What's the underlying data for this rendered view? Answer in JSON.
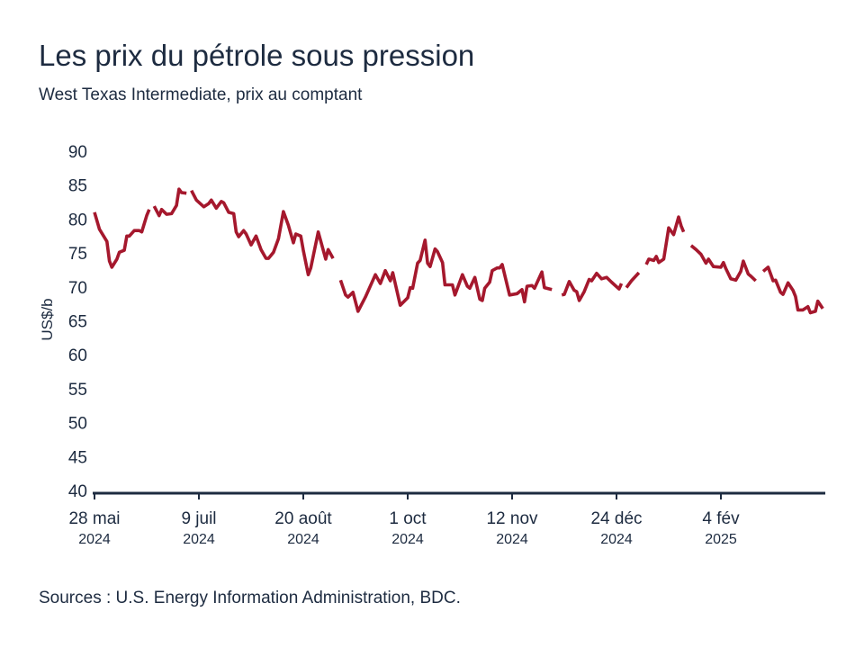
{
  "chart_data": {
    "type": "line",
    "title": "Les prix du pétrole sous pression",
    "subtitle": "West Texas Intermediate, prix au comptant",
    "ylabel": "US$/b",
    "xlabel": "",
    "ylim": [
      40,
      90
    ],
    "yticks": [
      40,
      45,
      50,
      55,
      60,
      65,
      70,
      75,
      80,
      85,
      90
    ],
    "xlim": [
      "2024-05-28",
      "2025-03-18"
    ],
    "xticks": [
      {
        "date": "2024-05-28",
        "label": "28 mai",
        "year": "2024"
      },
      {
        "date": "2024-07-09",
        "label": "9 juil",
        "year": "2024"
      },
      {
        "date": "2024-08-20",
        "label": "20 août",
        "year": "2024"
      },
      {
        "date": "2024-10-01",
        "label": "1 oct",
        "year": "2024"
      },
      {
        "date": "2024-11-12",
        "label": "12 nov",
        "year": "2024"
      },
      {
        "date": "2024-12-24",
        "label": "24 déc",
        "year": "2024"
      },
      {
        "date": "2025-02-04",
        "label": "4 fév",
        "year": "2025"
      }
    ],
    "grid": false,
    "line_color": "#a5182d",
    "axis_color": "#1d2b40",
    "series": [
      {
        "values": [
          [
            "2024-05-28",
            81.0
          ],
          [
            "2024-05-30",
            78.5
          ],
          [
            "2024-06-02",
            76.7
          ],
          [
            "2024-06-03",
            73.8
          ],
          [
            "2024-06-04",
            72.9
          ],
          [
            "2024-06-06",
            74.1
          ],
          [
            "2024-06-07",
            75.1
          ],
          [
            "2024-06-09",
            75.4
          ],
          [
            "2024-06-10",
            77.5
          ],
          [
            "2024-06-11",
            77.5
          ],
          [
            "2024-06-13",
            78.3
          ],
          [
            "2024-06-15",
            78.3
          ],
          [
            "2024-06-16",
            78.1
          ],
          [
            "2024-06-18",
            80.5
          ],
          [
            "2024-06-19",
            81.4
          ],
          [
            "2024-06-20",
            null
          ],
          [
            "2024-06-21",
            81.9
          ],
          [
            "2024-06-23",
            80.5
          ],
          [
            "2024-06-24",
            81.4
          ],
          [
            "2024-06-26",
            80.7
          ],
          [
            "2024-06-28",
            80.8
          ],
          [
            "2024-06-30",
            82.0
          ],
          [
            "2024-07-01",
            84.4
          ],
          [
            "2024-07-02",
            83.9
          ],
          [
            "2024-07-04",
            83.8
          ],
          [
            "2024-07-05",
            null
          ],
          [
            "2024-07-06",
            84.2
          ],
          [
            "2024-07-08",
            82.8
          ],
          [
            "2024-07-11",
            81.8
          ],
          [
            "2024-07-13",
            82.3
          ],
          [
            "2024-07-14",
            82.8
          ],
          [
            "2024-07-16",
            81.6
          ],
          [
            "2024-07-18",
            82.6
          ],
          [
            "2024-07-19",
            82.4
          ],
          [
            "2024-07-21",
            81.0
          ],
          [
            "2024-07-23",
            80.8
          ],
          [
            "2024-07-24",
            78.1
          ],
          [
            "2024-07-25",
            77.4
          ],
          [
            "2024-07-27",
            78.3
          ],
          [
            "2024-07-28",
            77.8
          ],
          [
            "2024-07-30",
            76.2
          ],
          [
            "2024-08-01",
            77.5
          ],
          [
            "2024-08-03",
            75.5
          ],
          [
            "2024-08-05",
            74.2
          ],
          [
            "2024-08-06",
            74.2
          ],
          [
            "2024-08-08",
            75.1
          ],
          [
            "2024-08-10",
            77.1
          ],
          [
            "2024-08-12",
            81.1
          ],
          [
            "2024-08-14",
            79.1
          ],
          [
            "2024-08-16",
            76.5
          ],
          [
            "2024-08-17",
            77.8
          ],
          [
            "2024-08-19",
            77.5
          ],
          [
            "2024-08-20",
            75.4
          ],
          [
            "2024-08-22",
            71.8
          ],
          [
            "2024-08-23",
            72.8
          ],
          [
            "2024-08-26",
            78.1
          ],
          [
            "2024-08-29",
            74.1
          ],
          [
            "2024-08-30",
            75.5
          ],
          [
            "2024-09-01",
            74.2
          ],
          [
            "2024-09-02",
            null
          ],
          [
            "2024-09-04",
            71.0
          ],
          [
            "2024-09-06",
            68.8
          ],
          [
            "2024-09-07",
            68.5
          ],
          [
            "2024-09-09",
            69.2
          ],
          [
            "2024-09-11",
            66.4
          ],
          [
            "2024-09-14",
            68.5
          ],
          [
            "2024-09-18",
            71.8
          ],
          [
            "2024-09-20",
            70.5
          ],
          [
            "2024-09-22",
            72.4
          ],
          [
            "2024-09-24",
            70.9
          ],
          [
            "2024-09-25",
            72.1
          ],
          [
            "2024-09-28",
            67.3
          ],
          [
            "2024-10-01",
            68.4
          ],
          [
            "2024-10-02",
            69.9
          ],
          [
            "2024-10-03",
            69.8
          ],
          [
            "2024-10-05",
            73.5
          ],
          [
            "2024-10-06",
            73.9
          ],
          [
            "2024-10-08",
            76.9
          ],
          [
            "2024-10-09",
            73.5
          ],
          [
            "2024-10-10",
            73.0
          ],
          [
            "2024-10-12",
            75.6
          ],
          [
            "2024-10-13",
            75.2
          ],
          [
            "2024-10-15",
            73.6
          ],
          [
            "2024-10-16",
            70.3
          ],
          [
            "2024-10-19",
            70.3
          ],
          [
            "2024-10-20",
            68.8
          ],
          [
            "2024-10-23",
            71.8
          ],
          [
            "2024-10-25",
            70.1
          ],
          [
            "2024-10-26",
            69.8
          ],
          [
            "2024-10-28",
            71.4
          ],
          [
            "2024-10-30",
            68.2
          ],
          [
            "2024-10-31",
            68.0
          ],
          [
            "2024-11-01",
            69.8
          ],
          [
            "2024-11-03",
            70.7
          ],
          [
            "2024-11-04",
            72.4
          ],
          [
            "2024-11-06",
            72.8
          ],
          [
            "2024-11-07",
            72.8
          ],
          [
            "2024-11-08",
            73.3
          ],
          [
            "2024-11-11",
            68.8
          ],
          [
            "2024-11-14",
            69.0
          ],
          [
            "2024-11-16",
            69.6
          ],
          [
            "2024-11-17",
            67.8
          ],
          [
            "2024-11-18",
            70.1
          ],
          [
            "2024-11-20",
            70.2
          ],
          [
            "2024-11-21",
            69.8
          ],
          [
            "2024-11-24",
            72.2
          ],
          [
            "2024-11-25",
            69.9
          ],
          [
            "2024-11-28",
            69.6
          ],
          [
            "2024-11-29",
            null
          ],
          [
            "2024-12-02",
            68.8
          ],
          [
            "2024-12-03",
            68.9
          ],
          [
            "2024-12-05",
            70.8
          ],
          [
            "2024-12-07",
            69.5
          ],
          [
            "2024-12-08",
            69.3
          ],
          [
            "2024-12-09",
            68.0
          ],
          [
            "2024-12-11",
            69.3
          ],
          [
            "2024-12-13",
            71.1
          ],
          [
            "2024-12-14",
            70.9
          ],
          [
            "2024-12-16",
            72.0
          ],
          [
            "2024-12-18",
            71.2
          ],
          [
            "2024-12-20",
            71.4
          ],
          [
            "2024-12-22",
            70.7
          ],
          [
            "2024-12-25",
            69.7
          ],
          [
            "2024-12-26",
            70.5
          ],
          [
            "2024-12-27",
            null
          ],
          [
            "2024-12-28",
            69.9
          ],
          [
            "2024-12-30",
            70.9
          ],
          [
            "2025-01-02",
            72.1
          ],
          [
            "2025-01-03",
            null
          ],
          [
            "2025-01-05",
            73.3
          ],
          [
            "2025-01-06",
            74.1
          ],
          [
            "2025-01-08",
            73.9
          ],
          [
            "2025-01-09",
            74.5
          ],
          [
            "2025-01-10",
            73.6
          ],
          [
            "2025-01-12",
            74.1
          ],
          [
            "2025-01-14",
            78.7
          ],
          [
            "2025-01-16",
            77.7
          ],
          [
            "2025-01-18",
            80.3
          ],
          [
            "2025-01-19",
            79.0
          ],
          [
            "2025-01-20",
            78.1
          ],
          [
            "2025-01-21",
            null
          ],
          [
            "2025-01-23",
            76.1
          ],
          [
            "2025-01-25",
            75.5
          ],
          [
            "2025-01-27",
            74.8
          ],
          [
            "2025-01-29",
            73.5
          ],
          [
            "2025-01-30",
            74.1
          ],
          [
            "2025-02-01",
            73.0
          ],
          [
            "2025-02-04",
            72.9
          ],
          [
            "2025-02-05",
            73.6
          ],
          [
            "2025-02-06",
            72.7
          ],
          [
            "2025-02-08",
            71.2
          ],
          [
            "2025-02-10",
            71.0
          ],
          [
            "2025-02-12",
            72.3
          ],
          [
            "2025-02-13",
            73.8
          ],
          [
            "2025-02-15",
            71.9
          ],
          [
            "2025-02-16",
            71.6
          ],
          [
            "2025-02-18",
            70.9
          ],
          [
            "2025-02-19",
            null
          ],
          [
            "2025-02-21",
            72.3
          ],
          [
            "2025-02-23",
            72.9
          ],
          [
            "2025-02-25",
            70.9
          ],
          [
            "2025-02-26",
            71.0
          ],
          [
            "2025-02-28",
            69.2
          ],
          [
            "2025-03-01",
            68.9
          ],
          [
            "2025-03-03",
            70.6
          ],
          [
            "2025-03-05",
            69.5
          ],
          [
            "2025-03-06",
            68.6
          ],
          [
            "2025-03-07",
            66.6
          ],
          [
            "2025-03-09",
            66.6
          ],
          [
            "2025-03-11",
            67.1
          ],
          [
            "2025-03-12",
            66.2
          ],
          [
            "2025-03-14",
            66.4
          ],
          [
            "2025-03-15",
            67.9
          ],
          [
            "2025-03-17",
            66.8
          ]
        ]
      }
    ],
    "source": "Sources : U.S. Energy Information Administration, BDC."
  }
}
